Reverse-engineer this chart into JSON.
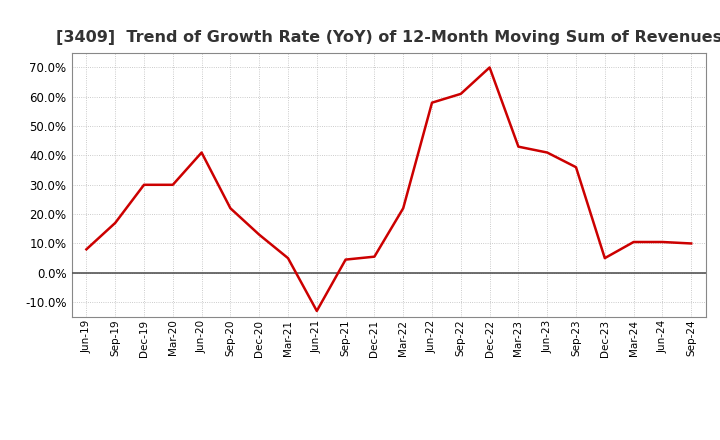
{
  "title": "[3409]  Trend of Growth Rate (YoY) of 12-Month Moving Sum of Revenues",
  "x_labels": [
    "Jun-19",
    "Sep-19",
    "Dec-19",
    "Mar-20",
    "Jun-20",
    "Sep-20",
    "Dec-20",
    "Mar-21",
    "Jun-21",
    "Sep-21",
    "Dec-21",
    "Mar-22",
    "Jun-22",
    "Sep-22",
    "Dec-22",
    "Mar-23",
    "Jun-23",
    "Sep-23",
    "Dec-23",
    "Mar-24",
    "Jun-24",
    "Sep-24"
  ],
  "y_values": [
    8.0,
    17.0,
    30.0,
    30.0,
    41.0,
    22.0,
    13.0,
    5.0,
    -13.0,
    4.5,
    5.5,
    22.0,
    58.0,
    61.0,
    70.0,
    43.0,
    41.0,
    36.0,
    5.0,
    10.5,
    10.5,
    10.0
  ],
  "line_color": "#cc0000",
  "line_width": 1.8,
  "ylim": [
    -15,
    75
  ],
  "yticks": [
    -10.0,
    0.0,
    10.0,
    20.0,
    30.0,
    40.0,
    50.0,
    60.0,
    70.0
  ],
  "grid_color": "#bbbbbb",
  "background_color": "#ffffff",
  "zero_line_color": "#555555",
  "title_fontsize": 11.5,
  "title_color": "#333333"
}
